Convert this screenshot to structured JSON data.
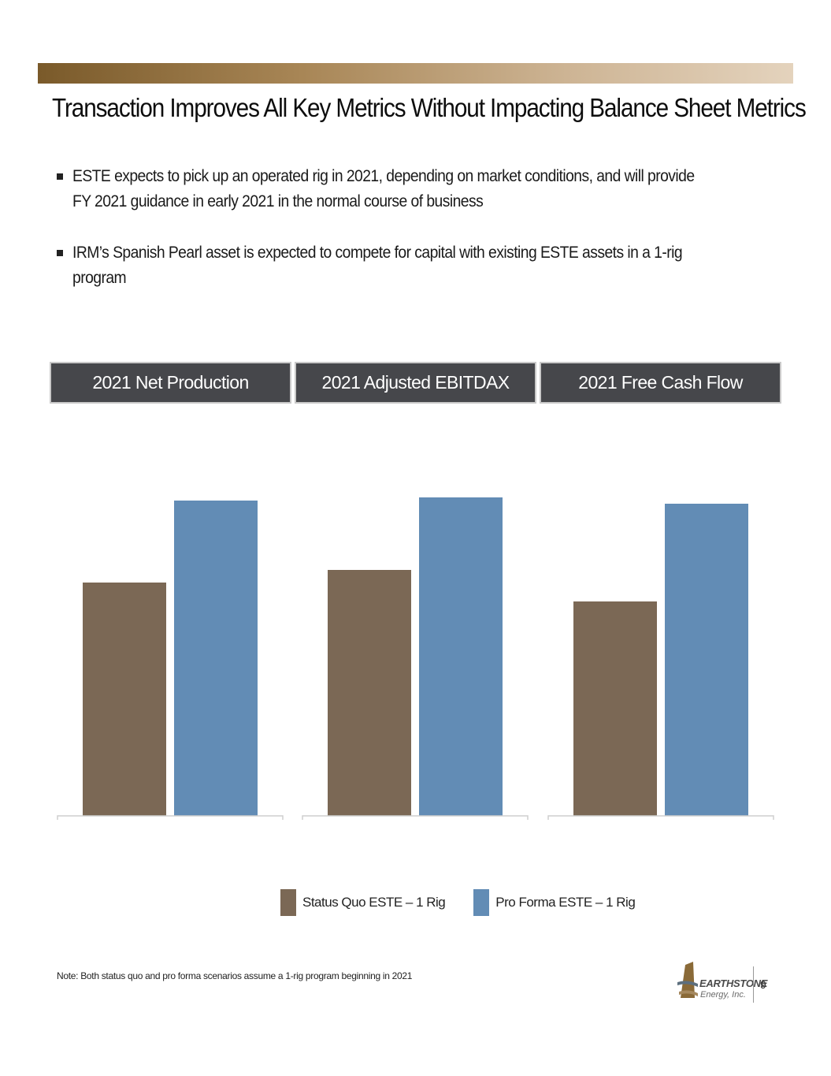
{
  "title": "Transaction Improves All Key Metrics Without Impacting Balance Sheet Metrics",
  "bullets": [
    "ESTE expects to pick up an operated rig in 2021, depending on market conditions, and will provide FY 2021 guidance in early 2021 in the normal course of business",
    "IRM’s Spanish Pearl asset is expected to compete for capital with existing ESTE assets in a 1-rig program"
  ],
  "panels": [
    {
      "header": "2021 Net Production"
    },
    {
      "header": "2021 Adjusted EBITDAX"
    },
    {
      "header": "2021 Free Cash Flow"
    }
  ],
  "legend": {
    "status_quo": "Status Quo ESTE – 1 Rig",
    "pro_forma": "Pro Forma ESTE – 1 Rig"
  },
  "colors": {
    "status_quo": "#7b6855",
    "pro_forma": "#628cb5",
    "header_bg": "#46474b",
    "accent": "#8a6a38"
  },
  "note": "Note: Both status quo and pro forma scenarios assume a 1-rig program beginning in 2021",
  "logo": {
    "name": "EARTHSTONE",
    "sub": "Energy, Inc."
  },
  "page_number": "9",
  "chart_data": [
    {
      "type": "bar",
      "title": "2021 Net Production",
      "categories": [
        "Status Quo ESTE – 1 Rig",
        "Pro Forma ESTE – 1 Rig"
      ],
      "values": [
        74,
        100
      ],
      "ylim": [
        0,
        105
      ]
    },
    {
      "type": "bar",
      "title": "2021 Adjusted EBITDAX",
      "categories": [
        "Status Quo ESTE – 1 Rig",
        "Pro Forma ESTE – 1 Rig"
      ],
      "values": [
        78,
        101
      ],
      "ylim": [
        0,
        105
      ]
    },
    {
      "type": "bar",
      "title": "2021 Free Cash Flow",
      "categories": [
        "Status Quo ESTE – 1 Rig",
        "Pro Forma ESTE – 1 Rig"
      ],
      "values": [
        68,
        99
      ],
      "ylim": [
        0,
        105
      ]
    }
  ]
}
